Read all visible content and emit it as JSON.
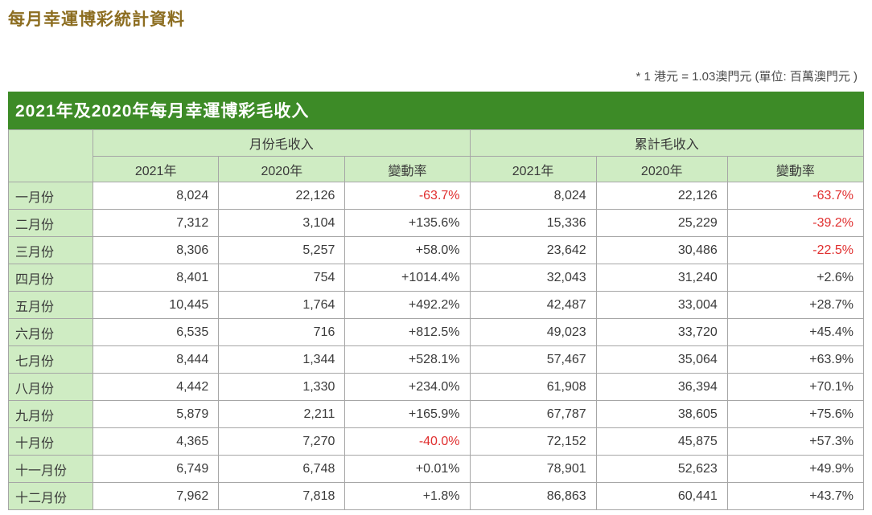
{
  "page": {
    "title": "每月幸運博彩統計資料",
    "note": "* 1 港元 = 1.03澳門元 (單位: 百萬澳門元 )"
  },
  "table": {
    "title": "2021年及2020年每月幸運博彩毛收入",
    "group_headers": {
      "monthly": "月份毛收入",
      "cumulative": "累計毛收入"
    },
    "sub_headers": [
      "2021年",
      "2020年",
      "變動率",
      "2021年",
      "2020年",
      "變動率"
    ],
    "rows": [
      [
        "一月份",
        "8,024",
        "22,126",
        "-63.7%",
        "8,024",
        "22,126",
        "-63.7%"
      ],
      [
        "二月份",
        "7,312",
        "3,104",
        "+135.6%",
        "15,336",
        "25,229",
        "-39.2%"
      ],
      [
        "三月份",
        "8,306",
        "5,257",
        "+58.0%",
        "23,642",
        "30,486",
        "-22.5%"
      ],
      [
        "四月份",
        "8,401",
        "754",
        "+1014.4%",
        "32,043",
        "31,240",
        "+2.6%"
      ],
      [
        "五月份",
        "10,445",
        "1,764",
        "+492.2%",
        "42,487",
        "33,004",
        "+28.7%"
      ],
      [
        "六月份",
        "6,535",
        "716",
        "+812.5%",
        "49,023",
        "33,720",
        "+45.4%"
      ],
      [
        "七月份",
        "8,444",
        "1,344",
        "+528.1%",
        "57,467",
        "35,064",
        "+63.9%"
      ],
      [
        "八月份",
        "4,442",
        "1,330",
        "+234.0%",
        "61,908",
        "36,394",
        "+70.1%"
      ],
      [
        "九月份",
        "5,879",
        "2,211",
        "+165.9%",
        "67,787",
        "38,605",
        "+75.6%"
      ],
      [
        "十月份",
        "4,365",
        "7,270",
        "-40.0%",
        "72,152",
        "45,875",
        "+57.3%"
      ],
      [
        "十一月份",
        "6,749",
        "6,748",
        "+0.01%",
        "78,901",
        "52,623",
        "+49.9%"
      ],
      [
        "十二月份",
        "7,962",
        "7,818",
        "+1.8%",
        "86,863",
        "60,441",
        "+43.7%"
      ]
    ]
  },
  "colors": {
    "title_brown": "#8c6d20",
    "header_green": "#3d8b27",
    "light_green": "#cfecc3",
    "border_gray": "#a6a6a6",
    "negative_red": "#e02f2f",
    "text_dark": "#3a3a3a"
  }
}
